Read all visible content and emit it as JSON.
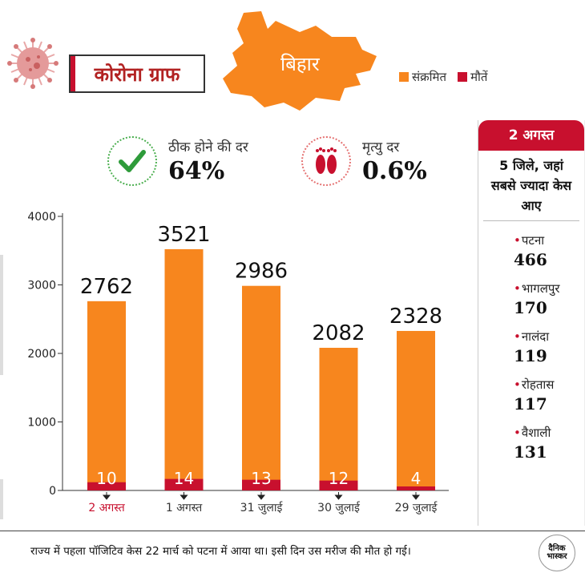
{
  "header": {
    "title": "कोरोना ग्राफ",
    "state": "बिहार",
    "legend": [
      {
        "label": "संक्रमित",
        "color": "#f7861e"
      },
      {
        "label": "मौतें",
        "color": "#c8102e"
      }
    ]
  },
  "stats": {
    "recovery": {
      "label": "ठीक होने की दर",
      "value": "64%"
    },
    "death": {
      "label": "मृत्यु दर",
      "value": "0.6%"
    }
  },
  "colors": {
    "infected": "#f7861e",
    "deaths": "#c8102e",
    "accent": "#c8102e"
  },
  "chart_data": {
    "type": "bar",
    "categories": [
      "2 अगस्त",
      "1 अगस्त",
      "31 जुलाई",
      "30 जुलाई",
      "29 जुलाई"
    ],
    "highlight_index": 0,
    "series": [
      {
        "name": "संक्रमित",
        "values": [
          2762,
          3521,
          2986,
          2082,
          2328
        ],
        "value_labels": [
          "2762",
          "3521",
          "2986",
          "2082",
          "2328"
        ]
      },
      {
        "name": "मौतें",
        "values": [
          10,
          14,
          13,
          12,
          4
        ],
        "value_labels": [
          "10",
          "14",
          "13",
          "12",
          "4"
        ]
      }
    ],
    "yticks": [
      "0",
      "1000",
      "2000",
      "3000",
      "4000"
    ],
    "ylim": [
      0,
      4000
    ],
    "grid": false
  },
  "sidebar": {
    "date": "2 अगस्त",
    "heading": "5 जिले, जहां सबसे ज्यादा केस आए",
    "districts": [
      {
        "name": "पटना",
        "count": "466"
      },
      {
        "name": "भागलपुर",
        "count": "170"
      },
      {
        "name": "नालंदा",
        "count": "119"
      },
      {
        "name": "रोहतास",
        "count": "117"
      },
      {
        "name": "वैशाली",
        "count": "131"
      }
    ]
  },
  "footer": {
    "note": "राज्य में पहला पॉजिटिव केस 22 मार्च को पटना में आया था। इसी दिन उस मरीज की मौत हो गई।",
    "logo": "दैनिक भास्कर"
  }
}
